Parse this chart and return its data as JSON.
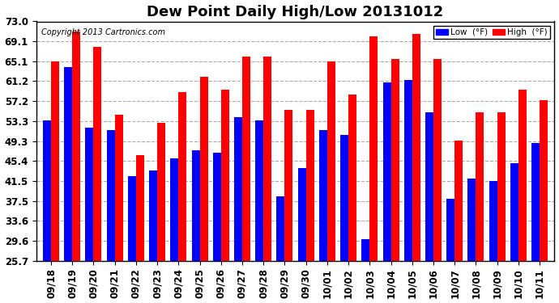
{
  "title": "Dew Point Daily High/Low 20131012",
  "copyright": "Copyright 2013 Cartronics.com",
  "legend_low": "Low  (°F)",
  "legend_high": "High  (°F)",
  "dates": [
    "09/18",
    "09/19",
    "09/20",
    "09/21",
    "09/22",
    "09/23",
    "09/24",
    "09/25",
    "09/26",
    "09/27",
    "09/28",
    "09/29",
    "09/30",
    "10/01",
    "10/02",
    "10/03",
    "10/04",
    "10/05",
    "10/06",
    "10/07",
    "10/08",
    "10/09",
    "10/10",
    "10/11"
  ],
  "high": [
    65.1,
    71.0,
    68.0,
    54.5,
    46.5,
    53.0,
    59.0,
    62.0,
    59.5,
    66.0,
    66.0,
    55.5,
    55.5,
    65.1,
    58.5,
    70.0,
    65.5,
    70.5,
    65.5,
    49.5,
    55.0,
    55.0,
    59.5,
    57.5
  ],
  "low": [
    53.5,
    64.0,
    52.0,
    51.5,
    42.5,
    43.5,
    46.0,
    47.5,
    47.0,
    54.0,
    53.5,
    38.5,
    44.0,
    51.5,
    50.5,
    30.0,
    61.0,
    61.5,
    55.0,
    38.0,
    42.0,
    41.5,
    45.0,
    49.0
  ],
  "yticks": [
    25.7,
    29.6,
    33.6,
    37.5,
    41.5,
    45.4,
    49.3,
    53.3,
    57.2,
    61.2,
    65.1,
    69.1,
    73.0
  ],
  "ymin": 25.7,
  "ylim": [
    25.7,
    73.0
  ],
  "bar_width": 0.38,
  "high_color": "#ff0000",
  "low_color": "#0000ff",
  "bg_color": "#ffffff",
  "grid_color": "#aaaaaa",
  "title_fontsize": 13,
  "label_fontsize": 8.5
}
